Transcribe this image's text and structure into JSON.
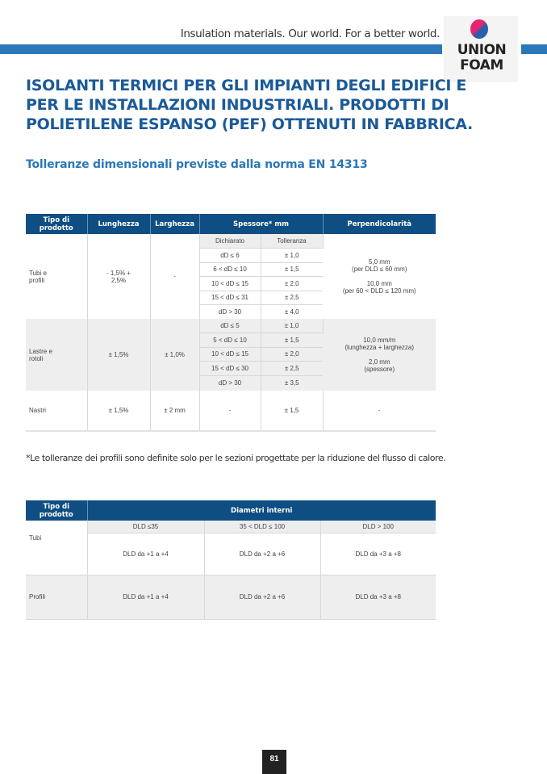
{
  "header": {
    "tagline": "Insulation materials. Our world. For a better world.",
    "logo_line1": "UNION",
    "logo_line2": "FOAM",
    "accent": "#2a78b8"
  },
  "title": "ISOLANTI TERMICI PER GLI IMPIANTI DEGLI EDIFICI E PER LE INSTALLAZIONI INDUSTRIALI. PRODOTTI DI POLIETILENE ESPANSO (PEF) OTTENUTI IN FABBRICA.",
  "subtitle": "Tolleranze dimensionali previste dalla norma EN 14313",
  "table1": {
    "headers": [
      "Tipo di prodotto",
      "Lunghezza",
      "Larghezza",
      "Spessore* mm",
      "Perpendicolarità"
    ],
    "sub_headers": [
      "Dichiarato",
      "Tolleranza"
    ],
    "rows": [
      {
        "product": "Tubi e profili",
        "length": "- 1,5% + 2,5%",
        "width": "-",
        "thickness": [
          [
            "dD ≤ 6",
            "± 1,0"
          ],
          [
            "6 < dD ≤ 10",
            "± 1,5"
          ],
          [
            "10 < dD ≤ 15",
            "± 2,0"
          ],
          [
            "15 < dD ≤ 31",
            "± 2,5"
          ],
          [
            "dD > 30",
            "± 4,0"
          ]
        ],
        "perp1": "5,0 mm",
        "perp1b": "(per DLD ≤ 60 mm)",
        "perp2": "10,0 mm",
        "perp2b": "(per 60 < DLD ≤ 120 mm)"
      },
      {
        "product": "Lastre e rotoli",
        "length": "± 1,5%",
        "width": "± 1,0%",
        "thickness": [
          [
            "dD ≤ 5",
            "± 1,0"
          ],
          [
            "5 < dD ≤ 10",
            "± 1,5"
          ],
          [
            "10 < dD ≤ 15",
            "± 2,0"
          ],
          [
            "15 < dD ≤ 30",
            "± 2,5"
          ],
          [
            "dD > 30",
            "± 3,5"
          ]
        ],
        "perp1": "10,0 mm/m",
        "perp1b": "(lunghezza + larghezza)",
        "perp2": "2,0 mm",
        "perp2b": "(spessore)"
      },
      {
        "product": "Nastri",
        "length": "± 1,5%",
        "width": "± 2 mm",
        "declared": "-",
        "tolerance": "± 1,5",
        "perp": "-"
      }
    ]
  },
  "footnote": "*Le tolleranze dei profili sono definite solo per le sezioni progettate per la riduzione del flusso di calore.",
  "table2": {
    "headers": [
      "Tipo di prodotto",
      "Diametri interni"
    ],
    "sub_headers": [
      "DLD ≤35",
      "35 < DLD ≤ 100",
      "DLD > 100"
    ],
    "rows": [
      {
        "product": "Tubi",
        "values": [
          "DLD da +1 a +4",
          "DLD da +2 a +6",
          "DLD da +3 a +8"
        ]
      },
      {
        "product": "Profili",
        "values": [
          "DLD da +1 a +4",
          "DLD da +2 a +6",
          "DLD da +3 a +8"
        ]
      }
    ]
  },
  "page_number": "81"
}
